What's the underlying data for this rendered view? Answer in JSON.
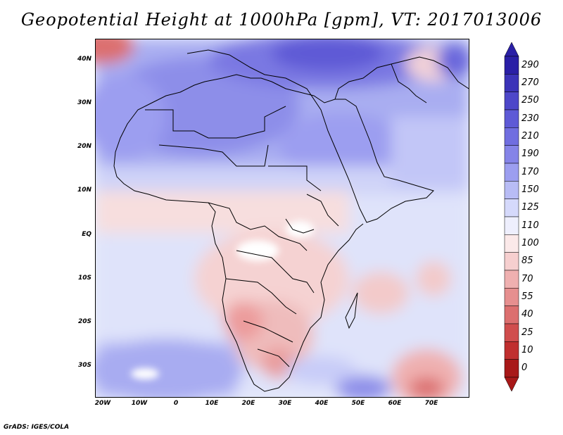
{
  "title": "Geopotential Height at 1000hPa [gpm], VT: 2017013006",
  "credit": "GrADS: IGES/COLA",
  "lat_labels": [
    "40N",
    "30N",
    "20N",
    "10N",
    "EQ",
    "10S",
    "20S",
    "30S"
  ],
  "lon_labels": [
    "20W",
    "10W",
    "0",
    "10E",
    "20E",
    "30E",
    "40E",
    "50E",
    "60E",
    "70E"
  ],
  "colorbar": {
    "levels": [
      "290",
      "270",
      "250",
      "230",
      "210",
      "190",
      "170",
      "150",
      "125",
      "110",
      "100",
      "85",
      "70",
      "55",
      "40",
      "25",
      "10",
      "0"
    ],
    "colors": [
      "#2a1fa6",
      "#3b33b8",
      "#4d47c9",
      "#5e5ad6",
      "#706ee0",
      "#8584e8",
      "#9c9ef0",
      "#b8bcf5",
      "#d5d9fb",
      "#eeeffd",
      "#fbe9e9",
      "#f6cfcf",
      "#efb0b0",
      "#e68f8f",
      "#dc6f6f",
      "#d04d4d",
      "#c02f2f",
      "#a81818"
    ]
  }
}
